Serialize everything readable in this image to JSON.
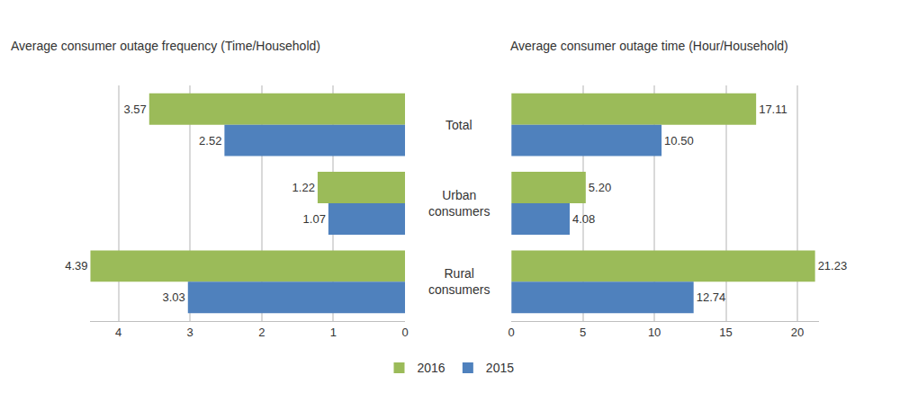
{
  "chart_data": [
    {
      "type": "bar",
      "orientation": "horizontal",
      "title": "Average consumer outage frequency (Time/Household)",
      "categories": [
        "Total",
        "Urban consumers",
        "Rural consumers"
      ],
      "series": [
        {
          "name": "2016",
          "color": "#9bbb59",
          "values": [
            3.57,
            1.22,
            4.39
          ]
        },
        {
          "name": "2015",
          "color": "#4f81bd",
          "values": [
            2.52,
            1.07,
            3.03
          ]
        }
      ],
      "xlim": [
        4.4,
        0
      ],
      "xticks": [
        4,
        3,
        2,
        1,
        0
      ],
      "grid": true,
      "data_labels": true,
      "legend": "bottom"
    },
    {
      "type": "bar",
      "orientation": "horizontal",
      "title": "Average consumer outage time (Hour/Household)",
      "categories": [
        "Total",
        "Urban consumers",
        "Rural consumers"
      ],
      "series": [
        {
          "name": "2016",
          "color": "#9bbb59",
          "values": [
            17.11,
            5.2,
            21.23
          ]
        },
        {
          "name": "2015",
          "color": "#4f81bd",
          "values": [
            10.5,
            4.08,
            12.74
          ]
        }
      ],
      "xlim": [
        0,
        21.5
      ],
      "xticks": [
        0,
        5,
        10,
        15,
        20
      ],
      "grid": true,
      "data_labels": true,
      "legend": "bottom"
    }
  ]
}
